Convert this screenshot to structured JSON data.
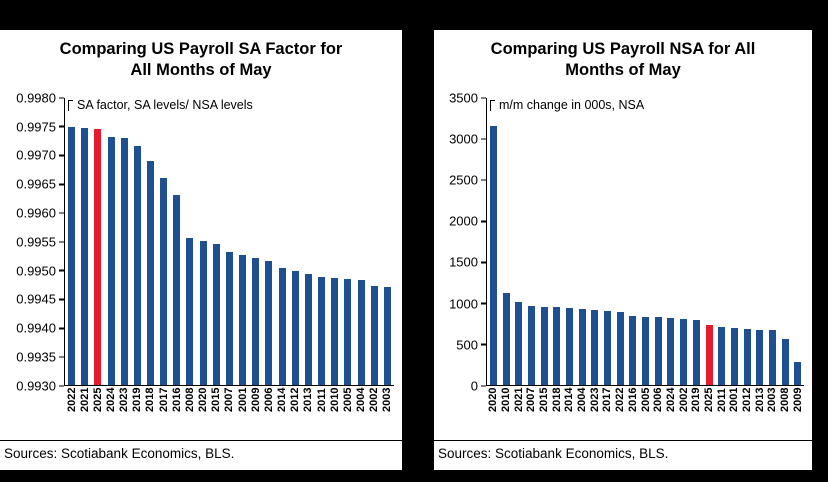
{
  "frame": {
    "background": "#000000",
    "panel_background": "#ffffff"
  },
  "chart_data": [
    {
      "type": "bar",
      "title": "Comparing US Payroll SA Factor for All Months of May",
      "title_lines": [
        "Comparing US Payroll SA Factor for",
        "All Months of May"
      ],
      "annotation": "SA factor, SA levels/ NSA levels",
      "xlabel": "",
      "ylabel": "SA factor, SA levels/ NSA levels",
      "ylim": [
        0.993,
        0.998
      ],
      "y_ticks": [
        "0.9980",
        "0.9975",
        "0.9970",
        "0.9965",
        "0.9960",
        "0.9955",
        "0.9950",
        "0.9945",
        "0.9940",
        "0.9935",
        "0.9930"
      ],
      "categories": [
        "2022",
        "2021",
        "2025",
        "2024",
        "2023",
        "2019",
        "2018",
        "2017",
        "2016",
        "2008",
        "2020",
        "2015",
        "2007",
        "2001",
        "2009",
        "2006",
        "2014",
        "2012",
        "2013",
        "2011",
        "2010",
        "2005",
        "2004",
        "2002",
        "2003"
      ],
      "values": [
        0.9975,
        0.99748,
        0.99745,
        0.99732,
        0.9973,
        0.99716,
        0.9969,
        0.99661,
        0.9963,
        0.99556,
        0.99551,
        0.99545,
        0.99531,
        0.99526,
        0.99521,
        0.99516,
        0.99503,
        0.99498,
        0.99493,
        0.99488,
        0.99487,
        0.99485,
        0.99483,
        0.99473,
        0.9947
      ],
      "highlight_category": "2025",
      "bar_color": "#1d4f91",
      "highlight_color": "#e8192d",
      "grid": false,
      "legend": "none",
      "sources": "Sources: Scotiabank Economics, BLS."
    },
    {
      "type": "bar",
      "title": "Comparing US Payroll NSA for All Months of May",
      "title_lines": [
        "Comparing US Payroll NSA for All",
        "Months of May"
      ],
      "annotation": "m/m change in 000s, NSA",
      "xlabel": "",
      "ylabel": "m/m change in 000s, NSA",
      "ylim": [
        0,
        3500
      ],
      "y_ticks": [
        "3500",
        "3000",
        "2500",
        "2000",
        "1500",
        "1000",
        "500",
        "0"
      ],
      "categories": [
        "2020",
        "2010",
        "2021",
        "2007",
        "2015",
        "2018",
        "2014",
        "2004",
        "2023",
        "2017",
        "2022",
        "2016",
        "2005",
        "2006",
        "2024",
        "2002",
        "2019",
        "2025",
        "2011",
        "2001",
        "2012",
        "2013",
        "2003",
        "2008",
        "2009"
      ],
      "values": [
        3160,
        1120,
        1005,
        960,
        950,
        945,
        935,
        925,
        915,
        905,
        890,
        845,
        830,
        825,
        815,
        805,
        795,
        725,
        705,
        695,
        685,
        675,
        665,
        560,
        285
      ],
      "highlight_category": "2025",
      "bar_color": "#1d4f91",
      "highlight_color": "#e8192d",
      "grid": false,
      "legend": "none",
      "sources": "Sources: Scotiabank Economics, BLS."
    }
  ]
}
